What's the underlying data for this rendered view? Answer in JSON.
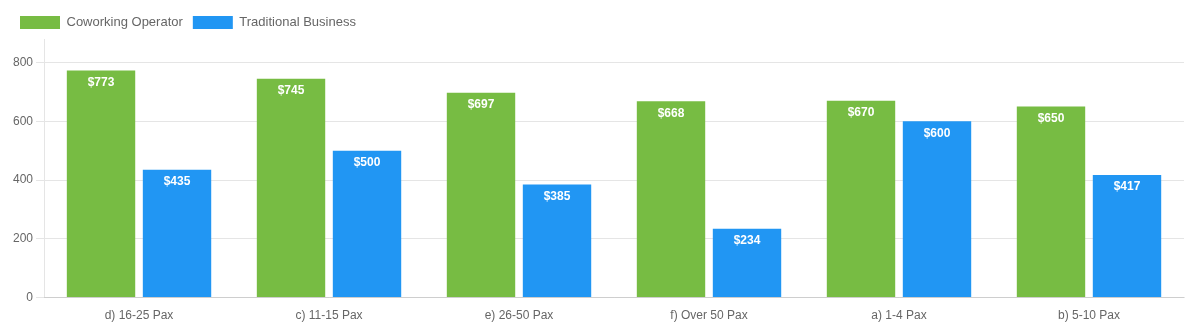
{
  "chart_data": {
    "type": "bar",
    "categories": [
      "d) 16-25 Pax",
      "c) 11-15 Pax",
      "e) 26-50 Pax",
      "f) Over 50 Pax",
      "a) 1-4 Pax",
      "b) 5-10 Pax"
    ],
    "series": [
      {
        "name": "Coworking Operator",
        "color": "#77bc43",
        "values": [
          773,
          745,
          697,
          668,
          670,
          650
        ],
        "value_labels": [
          "$773",
          "$745",
          "$697",
          "$668",
          "$670",
          "$650"
        ]
      },
      {
        "name": "Traditional Business",
        "color": "#2196f3",
        "values": [
          435,
          500,
          385,
          234,
          600,
          417
        ],
        "value_labels": [
          "$435",
          "$500",
          "$385",
          "$234",
          "$600",
          "$417"
        ]
      }
    ],
    "ylim": [
      0,
      880
    ],
    "yticks": [
      0,
      200,
      400,
      600,
      800
    ],
    "grid": true,
    "legend": "upper left",
    "data_labels": true
  }
}
